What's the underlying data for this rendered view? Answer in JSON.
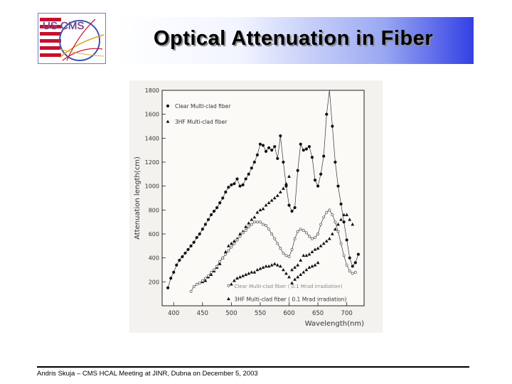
{
  "slide": {
    "title": "Optical Attenuation in Fiber",
    "footer": "Andris Skuja – CMS HCAL Meeting at JINR, Dubna on December 5, 2003"
  },
  "logo": {
    "text": "US CMS",
    "flag_red": "#c8102e",
    "ring_color": "#3a55b0"
  },
  "colors": {
    "banner_left": "#ffffff",
    "banner_right": "#3440e4"
  },
  "chart_data": {
    "type": "scatter",
    "title": "",
    "xlabel": "Wavelength(nm)",
    "ylabel": "Attenuation length(cm)",
    "xlim": [
      380,
      730
    ],
    "ylim": [
      0,
      1800
    ],
    "xticks": [
      400,
      450,
      500,
      550,
      600,
      650,
      700
    ],
    "yticks": [
      200,
      400,
      600,
      800,
      1000,
      1200,
      1400,
      1600,
      1800
    ],
    "legend": {
      "placement": "top-left",
      "entries": [
        "Clear MultI-clad fiber",
        "3HF Multi-clad fiber"
      ]
    },
    "annotations": [
      "Clear Multi-clad fiber ( 0.1 Mrad irradiation)",
      "3HF Multi-clad fiber ( 0.1 Mrad irradiation)"
    ],
    "series": [
      {
        "name": "Clear MultI-clad fiber",
        "marker": "circle",
        "connected": true,
        "x": [
          390,
          395,
          400,
          405,
          410,
          415,
          420,
          425,
          430,
          435,
          440,
          445,
          450,
          455,
          460,
          465,
          470,
          475,
          480,
          485,
          490,
          495,
          500,
          505,
          510,
          515,
          520,
          525,
          530,
          535,
          540,
          545,
          550,
          555,
          560,
          565,
          570,
          575,
          580,
          585,
          590,
          595,
          600,
          605,
          610,
          615,
          620,
          625,
          630,
          635,
          640,
          645,
          650,
          655,
          660,
          665,
          670,
          675,
          680,
          685,
          690,
          695,
          700,
          705,
          710,
          715,
          720
        ],
        "y": [
          150,
          230,
          280,
          340,
          380,
          410,
          440,
          470,
          500,
          530,
          570,
          600,
          640,
          680,
          720,
          760,
          790,
          820,
          860,
          900,
          950,
          990,
          1010,
          1020,
          1060,
          1000,
          1010,
          1060,
          1100,
          1150,
          1200,
          1260,
          1350,
          1340,
          1290,
          1320,
          1300,
          1330,
          1230,
          1420,
          1200,
          1000,
          840,
          790,
          820,
          1130,
          1350,
          1300,
          1310,
          1330,
          1240,
          1050,
          1000,
          1100,
          1250,
          1600,
          1850,
          1500,
          1200,
          1000,
          850,
          700,
          550,
          400,
          330,
          360,
          430
        ]
      },
      {
        "name": "3HF Multi-clad fiber",
        "marker": "triangle",
        "connected": false,
        "x": [
          450,
          455,
          460,
          465,
          470,
          475,
          480,
          485,
          490,
          495,
          500,
          505,
          510,
          515,
          520,
          525,
          530,
          535,
          540,
          545,
          550,
          555,
          560,
          565,
          570,
          575,
          580,
          585,
          590,
          595,
          600,
          605,
          610,
          615,
          620,
          625,
          630,
          635,
          640,
          645,
          650,
          655,
          660,
          665,
          670,
          675,
          680,
          685,
          690,
          695,
          700,
          705,
          710
        ],
        "y": [
          200,
          210,
          240,
          260,
          290,
          320,
          350,
          400,
          450,
          500,
          520,
          540,
          560,
          600,
          620,
          660,
          690,
          720,
          740,
          780,
          800,
          810,
          840,
          860,
          880,
          900,
          920,
          950,
          980,
          1020,
          1080,
          300,
          320,
          340,
          380,
          420,
          420,
          430,
          450,
          470,
          480,
          500,
          520,
          540,
          560,
          600,
          640,
          680,
          720,
          760,
          760,
          720,
          680
        ]
      },
      {
        "name": "Clear Multi-clad fiber ( 0.1 Mrad irradiation)",
        "marker": "open-circle",
        "connected": true,
        "x": [
          430,
          435,
          440,
          445,
          450,
          455,
          460,
          465,
          470,
          475,
          480,
          485,
          490,
          495,
          500,
          505,
          510,
          515,
          520,
          525,
          530,
          535,
          540,
          545,
          550,
          555,
          560,
          565,
          570,
          575,
          580,
          585,
          590,
          595,
          600,
          605,
          610,
          615,
          620,
          625,
          630,
          635,
          640,
          645,
          650,
          655,
          660,
          665,
          670,
          675,
          680,
          685,
          690,
          695,
          700,
          705,
          710,
          715
        ],
        "y": [
          120,
          160,
          180,
          190,
          210,
          230,
          250,
          280,
          300,
          330,
          370,
          400,
          430,
          460,
          490,
          520,
          550,
          580,
          610,
          630,
          660,
          680,
          700,
          700,
          700,
          680,
          670,
          640,
          600,
          560,
          520,
          480,
          440,
          420,
          410,
          470,
          560,
          620,
          640,
          630,
          610,
          580,
          560,
          570,
          600,
          680,
          740,
          780,
          800,
          760,
          700,
          620,
          520,
          420,
          340,
          290,
          270,
          280
        ]
      },
      {
        "name": "3HF Multi-clad fiber ( 0.1 Mrad irradiation)",
        "marker": "triangle",
        "connected": false,
        "x": [
          500,
          505,
          510,
          515,
          520,
          525,
          530,
          535,
          540,
          545,
          550,
          555,
          560,
          565,
          570,
          575,
          580,
          585,
          590,
          595,
          600,
          605,
          610,
          615,
          620,
          625,
          630,
          635,
          640,
          645,
          650
        ],
        "y": [
          180,
          210,
          230,
          240,
          250,
          260,
          270,
          280,
          280,
          300,
          310,
          320,
          330,
          330,
          340,
          350,
          340,
          330,
          300,
          270,
          240,
          190,
          220,
          240,
          260,
          280,
          300,
          320,
          330,
          340,
          360
        ]
      }
    ]
  }
}
